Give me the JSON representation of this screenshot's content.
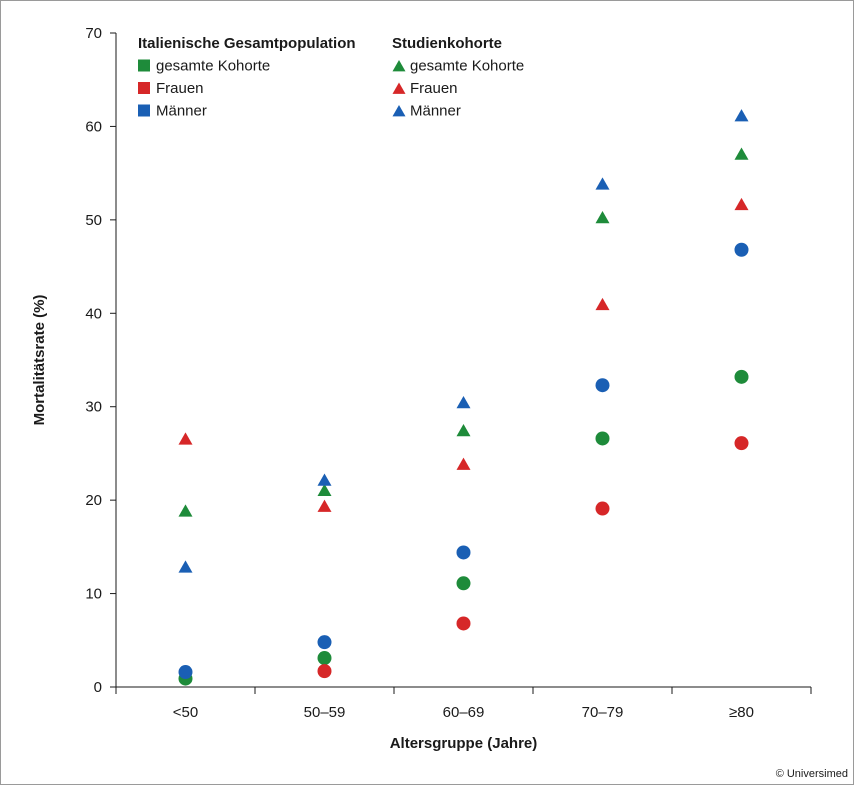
{
  "chart_data": {
    "type": "scatter",
    "xlabel": "Altersgruppe (Jahre)",
    "ylabel": "Mortalitätsrate (%)",
    "ylim": [
      0,
      70
    ],
    "yticks": [
      0,
      10,
      20,
      30,
      40,
      50,
      60,
      70
    ],
    "categories": [
      "<50",
      "50–59",
      "60–69",
      "70–79",
      "≥80"
    ],
    "grid": false,
    "legend": {
      "placement": "top-left",
      "groups": [
        {
          "title": "Italienische Gesamtpopulation",
          "marker": "square",
          "entries": [
            "gesamte Kohorte",
            "Frauen",
            "Männer"
          ]
        },
        {
          "title": "Studienkohorte",
          "marker": "triangle",
          "entries": [
            "gesamte Kohorte",
            "Frauen",
            "Männer"
          ]
        }
      ]
    },
    "series": [
      {
        "name": "Italienische Gesamtpopulation – gesamte Kohorte",
        "group": 0,
        "marker": "circle",
        "color": "#1e8b3a",
        "values": [
          0.9,
          3.1,
          11.1,
          26.6,
          33.2
        ]
      },
      {
        "name": "Italienische Gesamtpopulation – Frauen",
        "group": 0,
        "marker": "circle",
        "color": "#d62728",
        "values": [
          null,
          1.7,
          6.8,
          19.1,
          26.1
        ]
      },
      {
        "name": "Italienische Gesamtpopulation – Männer",
        "group": 0,
        "marker": "circle",
        "color": "#1a5fb4",
        "values": [
          1.6,
          4.8,
          14.4,
          32.3,
          46.8
        ]
      },
      {
        "name": "Studienkohorte – gesamte Kohorte",
        "group": 1,
        "marker": "triangle",
        "color": "#1e8b3a",
        "values": [
          18.8,
          21.0,
          27.4,
          50.2,
          57.0
        ]
      },
      {
        "name": "Studienkohorte – Frauen",
        "group": 1,
        "marker": "triangle",
        "color": "#d62728",
        "values": [
          26.5,
          19.3,
          23.8,
          40.9,
          51.6
        ]
      },
      {
        "name": "Studienkohorte – Männer",
        "group": 1,
        "marker": "triangle",
        "color": "#1a5fb4",
        "values": [
          12.8,
          22.1,
          30.4,
          53.8,
          61.1
        ]
      }
    ]
  },
  "copyright": "© Universimed"
}
